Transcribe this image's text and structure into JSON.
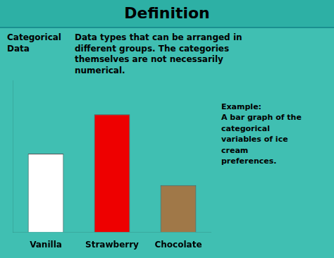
{
  "chart_data": {
    "type": "bar",
    "title": "Definition",
    "categories": [
      "Vanilla",
      "Strawberry",
      "Chocolate"
    ],
    "values": [
      3.0,
      4.5,
      1.8
    ],
    "colors": [
      "#ffffff",
      "#ee0000",
      "#a07848"
    ],
    "ylim": [
      0,
      5.8
    ],
    "yticks": [],
    "tick_labels": "x",
    "grid": false,
    "annotations": [
      "Categorical\nData",
      "Data types that can be arranged in\ndifferent groups. The categories\nthemselves are not necessarily\nnumerical.",
      "Example:\nA bar graph of the\ncategorical\nvariables of ice\ncream\npreferences."
    ]
  }
}
